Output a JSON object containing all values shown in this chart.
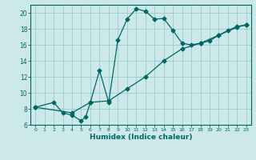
{
  "title": "",
  "xlabel": "Humidex (Indice chaleur)",
  "bg_color": "#cce8e8",
  "line_color": "#006666",
  "xlim": [
    -0.5,
    23.5
  ],
  "ylim": [
    6,
    21
  ],
  "xticks": [
    0,
    1,
    2,
    3,
    4,
    5,
    6,
    7,
    8,
    9,
    10,
    11,
    12,
    13,
    14,
    15,
    16,
    17,
    18,
    19,
    20,
    21,
    22,
    23
  ],
  "yticks": [
    6,
    8,
    10,
    12,
    14,
    16,
    18,
    20
  ],
  "curve1_x": [
    0,
    2,
    3,
    4,
    5,
    5.5,
    6,
    7,
    8,
    9,
    10,
    11,
    12,
    13,
    14,
    15,
    16,
    17,
    18,
    19,
    20,
    21,
    22,
    23
  ],
  "curve1_y": [
    8.2,
    8.8,
    7.5,
    7.2,
    6.5,
    7.0,
    8.8,
    12.8,
    8.8,
    16.6,
    19.2,
    20.5,
    20.2,
    19.2,
    19.3,
    17.8,
    16.2,
    16.0,
    16.2,
    16.5,
    17.2,
    17.8,
    18.3,
    18.5
  ],
  "curve2_x": [
    0,
    4,
    6,
    8,
    10,
    12,
    14,
    16,
    18,
    20,
    22,
    23
  ],
  "curve2_y": [
    8.2,
    7.5,
    8.8,
    9.0,
    10.5,
    12.0,
    14.0,
    15.5,
    16.2,
    17.2,
    18.2,
    18.5
  ],
  "grid_color": "#99cccc",
  "marker": "D",
  "marker_size": 2.5,
  "linewidth": 0.9
}
